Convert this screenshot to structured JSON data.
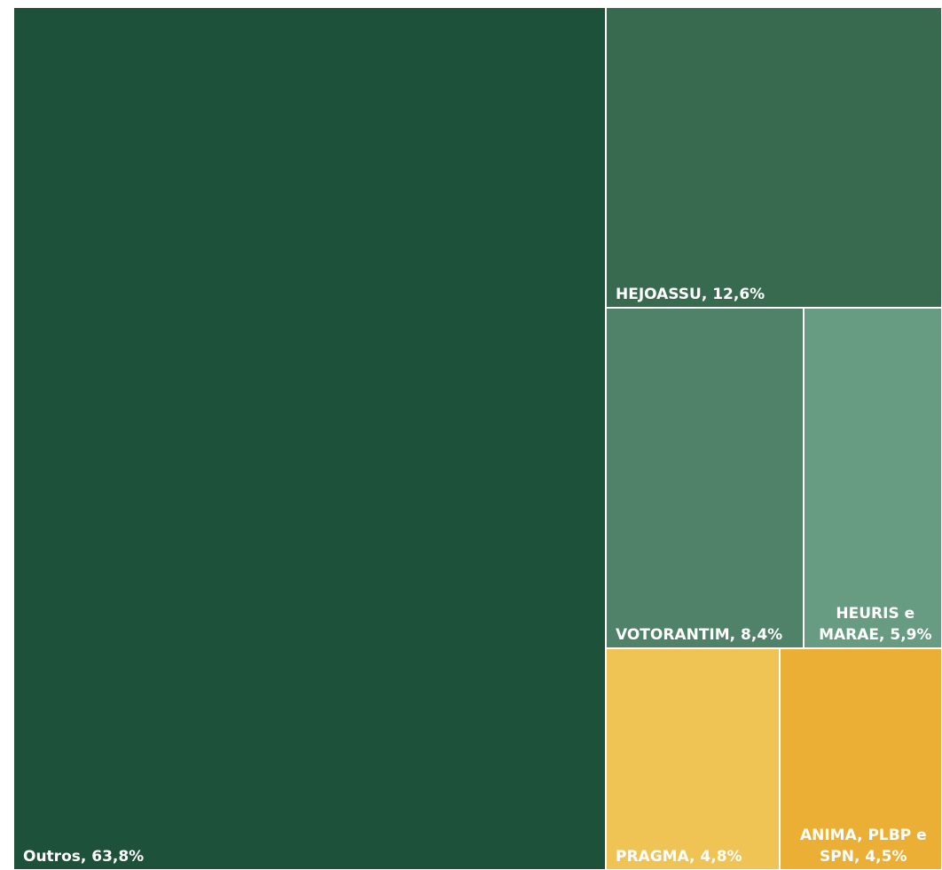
{
  "chart_data": {
    "type": "treemap",
    "values": [
      63.8,
      12.6,
      8.4,
      5.9,
      4.8,
      4.5
    ],
    "value_labels": [
      "Outros, 63,8%",
      "HEJOASSU, 12,6%",
      "VOTORANTIM, 8,4%",
      "HEURIS e MARAE, 5,9%",
      "PRAGMA, 4,8%",
      "ANIMA, PLBP e SPN, 4,5%"
    ],
    "colors": [
      "#1e5139",
      "#386a50",
      "#4f8268",
      "#689c82",
      "#f0c355",
      "#ebaf35"
    ]
  }
}
